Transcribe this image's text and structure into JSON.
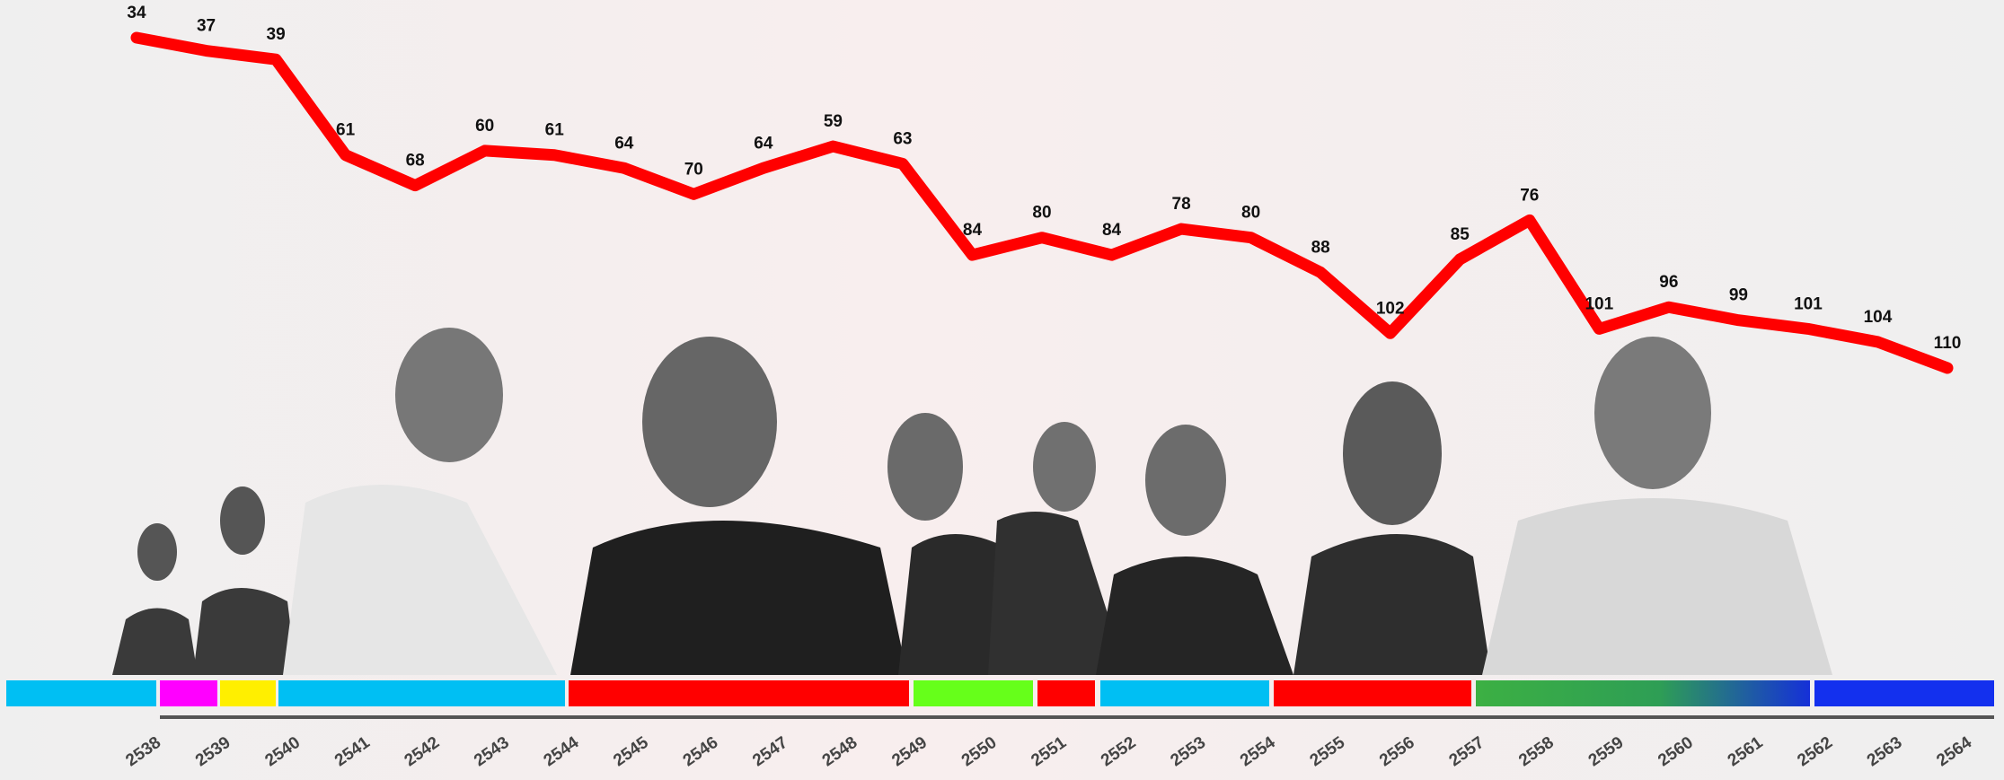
{
  "chart_data": {
    "type": "line",
    "categories": [
      "2538",
      "2539",
      "2540",
      "2541",
      "2542",
      "2543",
      "2544",
      "2545",
      "2546",
      "2547",
      "2548",
      "2549",
      "2550",
      "2551",
      "2552",
      "2553",
      "2554",
      "2555",
      "2556",
      "2557",
      "2558",
      "2559",
      "2560",
      "2561",
      "2562",
      "2563",
      "2564"
    ],
    "values": [
      34,
      37,
      39,
      61,
      68,
      60,
      61,
      64,
      70,
      64,
      59,
      63,
      84,
      80,
      84,
      78,
      80,
      88,
      102,
      85,
      76,
      101,
      96,
      99,
      101,
      104,
      110
    ],
    "color": "#ff0000",
    "ylim": [
      110,
      34
    ]
  }
}
